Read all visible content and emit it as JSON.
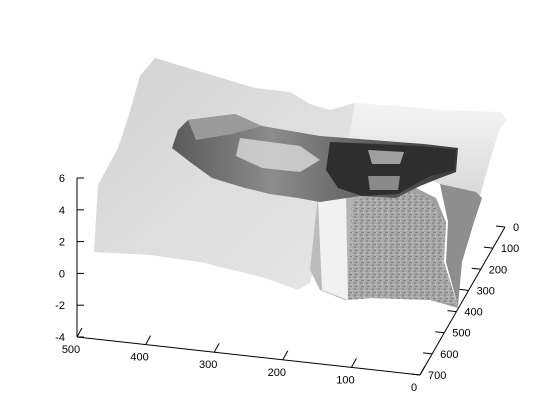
{
  "chart_data": {
    "type": "surface",
    "title": "",
    "xlabel": "",
    "ylabel": "",
    "zlabel": "",
    "colormap": "gray",
    "grid": false,
    "x_axis": {
      "ticks": [
        0,
        100,
        200,
        300,
        400,
        500
      ],
      "tick_labels": [
        "0",
        "100",
        "200",
        "300",
        "400",
        "500"
      ]
    },
    "y_axis": {
      "ticks": [
        0,
        100,
        200,
        300,
        400,
        500,
        600,
        700
      ],
      "tick_labels": [
        "0",
        "100",
        "200",
        "300",
        "400",
        "500",
        "600",
        "700"
      ]
    },
    "z_axis": {
      "ticks": [
        -4,
        -2,
        0,
        2,
        4,
        6
      ],
      "tick_labels": [
        "-4",
        "-2",
        "0",
        "2",
        "4",
        "6"
      ]
    },
    "xlim": [
      0,
      500
    ],
    "ylim": [
      0,
      700
    ],
    "zlim": [
      -4,
      6
    ]
  }
}
